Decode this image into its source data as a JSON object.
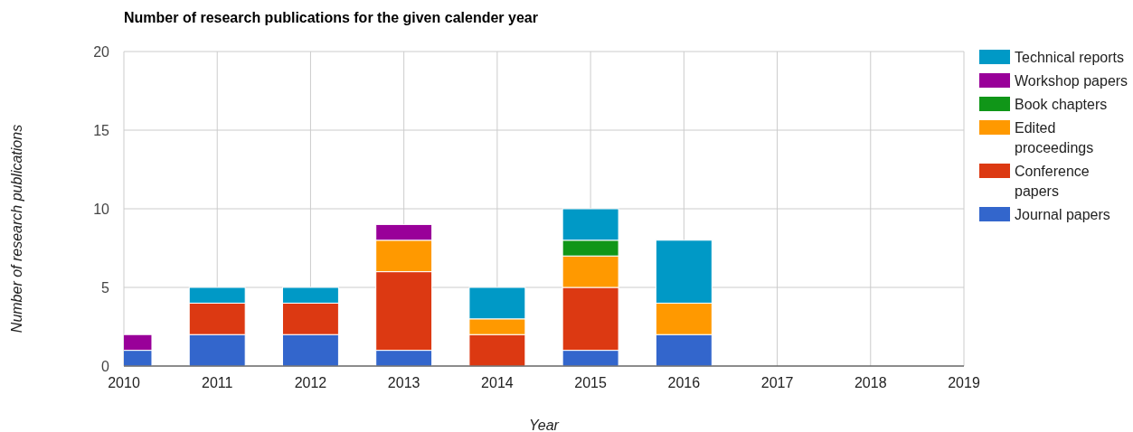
{
  "chart_data": {
    "type": "bar",
    "stacked": true,
    "title": "Number of research publications for the given calender year",
    "xlabel": "Year",
    "ylabel": "Number of research publications",
    "x": [
      2010,
      2011,
      2012,
      2013,
      2014,
      2015,
      2016
    ],
    "xlim": [
      2010,
      2019
    ],
    "xticks": [
      2010,
      2011,
      2012,
      2013,
      2014,
      2015,
      2016,
      2017,
      2018,
      2019
    ],
    "ylim": [
      0,
      20
    ],
    "yticks": [
      0,
      5,
      10,
      15,
      20
    ],
    "grid": true,
    "legend": "right",
    "series": [
      {
        "name": "Journal papers",
        "color": "#3366cc",
        "values": [
          1,
          2,
          2,
          1,
          0,
          1,
          2
        ]
      },
      {
        "name": "Conference papers",
        "color": "#dc3912",
        "values": [
          0,
          2,
          2,
          5,
          2,
          4,
          0
        ]
      },
      {
        "name": "Edited proceedings",
        "color": "#ff9900",
        "values": [
          0,
          0,
          0,
          2,
          1,
          2,
          2
        ]
      },
      {
        "name": "Book chapters",
        "color": "#109618",
        "values": [
          0,
          0,
          0,
          0,
          0,
          1,
          0
        ]
      },
      {
        "name": "Workshop papers",
        "color": "#990099",
        "values": [
          1,
          0,
          0,
          1,
          0,
          0,
          0
        ]
      },
      {
        "name": "Technical reports",
        "color": "#0099c6",
        "values": [
          0,
          1,
          1,
          0,
          2,
          2,
          4
        ]
      }
    ]
  }
}
